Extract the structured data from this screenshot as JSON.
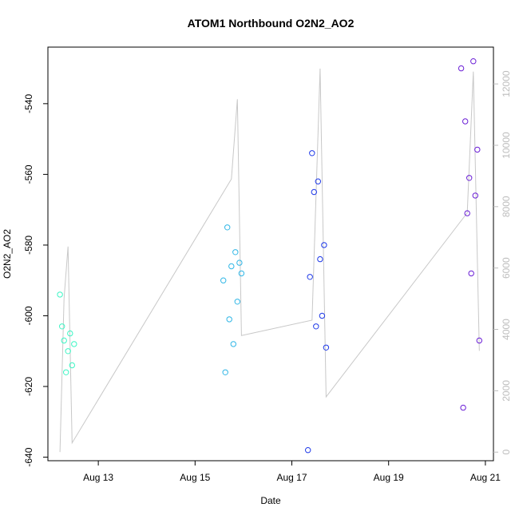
{
  "chart_data": {
    "type": "scatter",
    "title": "ATOM1 Northbound O2N2_AO2",
    "xlabel": "Date",
    "ylabel": "O2N2_AO2",
    "x_ticks": [
      "Aug 13",
      "Aug 15",
      "Aug 17",
      "Aug 19",
      "Aug 21"
    ],
    "y_ticks": [
      "-540",
      "-560",
      "-580",
      "-600",
      "-620",
      "-640"
    ],
    "y2_ticks": [
      "0",
      "2000",
      "4000",
      "6000",
      "8000",
      "10000",
      "12000"
    ],
    "xlim": [
      "2023-08-11T23:00",
      "2023-08-21T04:00"
    ],
    "ylim": [
      -641,
      -524
    ],
    "y2lim": [
      -280,
      13200
    ],
    "grid": false,
    "series": [
      {
        "color": "#3cf5c4",
        "x": [
          "2023-08-12T05:00",
          "2023-08-12T06:00",
          "2023-08-12T07:00",
          "2023-08-12T08:00",
          "2023-08-12T09:00",
          "2023-08-12T10:00",
          "2023-08-12T11:00",
          "2023-08-12T12:00"
        ],
        "y": [
          -594,
          -603,
          -607,
          -616,
          -610,
          -605,
          -614,
          -608
        ]
      },
      {
        "color": "#2fb6e6",
        "x": [
          "2023-08-15T14:00",
          "2023-08-15T15:00",
          "2023-08-15T16:00",
          "2023-08-15T17:00",
          "2023-08-15T18:00",
          "2023-08-15T19:00",
          "2023-08-15T20:00",
          "2023-08-15T21:00",
          "2023-08-15T22:00",
          "2023-08-15T23:00"
        ],
        "y": [
          -590,
          -616,
          -575,
          -601,
          -586,
          -608,
          -582,
          -596,
          -585,
          -588
        ]
      },
      {
        "color": "#1d38e8",
        "x": [
          "2023-08-17T08:00",
          "2023-08-17T09:00",
          "2023-08-17T10:00",
          "2023-08-17T11:00",
          "2023-08-17T12:00",
          "2023-08-17T13:00",
          "2023-08-17T14:00",
          "2023-08-17T15:00",
          "2023-08-17T16:00",
          "2023-08-17T17:00"
        ],
        "y": [
          -638,
          -589,
          -554,
          -565,
          -603,
          -562,
          -584,
          -600,
          -580,
          -609
        ]
      },
      {
        "color": "#6b1fd6",
        "x": [
          "2023-08-20T12:00",
          "2023-08-20T13:00",
          "2023-08-20T14:00",
          "2023-08-20T15:00",
          "2023-08-20T16:00",
          "2023-08-20T17:00",
          "2023-08-20T18:00",
          "2023-08-20T19:00",
          "2023-08-20T20:00",
          "2023-08-20T21:00"
        ],
        "y": [
          -530,
          -626,
          -545,
          -571,
          -561,
          -588,
          -528,
          -566,
          -553,
          -607
        ]
      }
    ],
    "secondary_line": {
      "color": "#c8c8c8",
      "axis": "right",
      "x": [
        "2023-08-12T05:00",
        "2023-08-12T07:00",
        "2023-08-12T09:00",
        "2023-08-12T11:00",
        "2023-08-15T18:00",
        "2023-08-15T21:00",
        "2023-08-15T23:00",
        "2023-08-17T10:00",
        "2023-08-17T14:00",
        "2023-08-17T17:00",
        "2023-08-20T15:00",
        "2023-08-20T18:00",
        "2023-08-20T21:00"
      ],
      "y": [
        0,
        5000,
        6700,
        300,
        8900,
        11500,
        3800,
        4300,
        12500,
        1800,
        7800,
        12400,
        3300
      ]
    }
  }
}
